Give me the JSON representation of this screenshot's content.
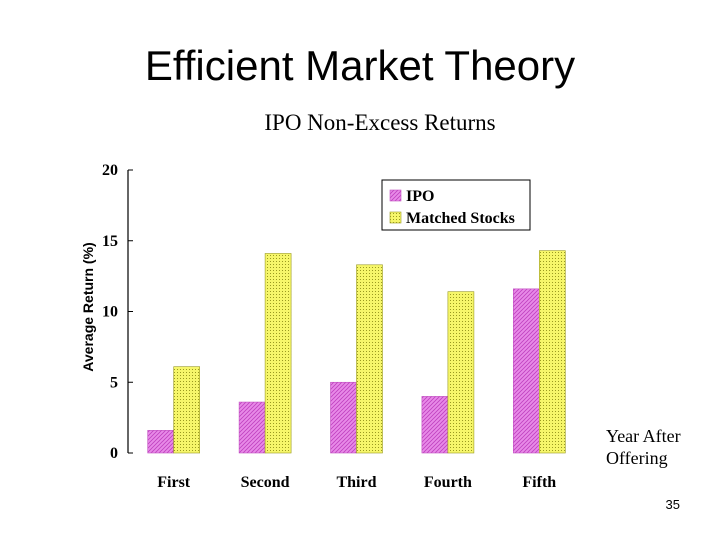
{
  "slide": {
    "title": "Efficient Market Theory",
    "page_number": "35"
  },
  "chart_data": {
    "type": "bar",
    "title": "IPO Non-Excess Returns",
    "xlabel": "Year After Offering",
    "ylabel": "Average Return (%)",
    "categories": [
      "First",
      "Second",
      "Third",
      "Fourth",
      "Fifth"
    ],
    "series": [
      {
        "name": "IPO",
        "values": [
          1.6,
          3.6,
          5.0,
          4.0,
          11.6
        ],
        "color": "#e07ee0",
        "pattern": "diagonal-hatch"
      },
      {
        "name": "Matched Stocks",
        "values": [
          6.1,
          14.1,
          13.3,
          11.4,
          14.3
        ],
        "color": "#f2f25a",
        "pattern": "dotted"
      }
    ],
    "ylim": [
      0,
      20
    ],
    "yticks": [
      0,
      5,
      10,
      15,
      20
    ],
    "grid": false,
    "legend_position": "top-right"
  }
}
